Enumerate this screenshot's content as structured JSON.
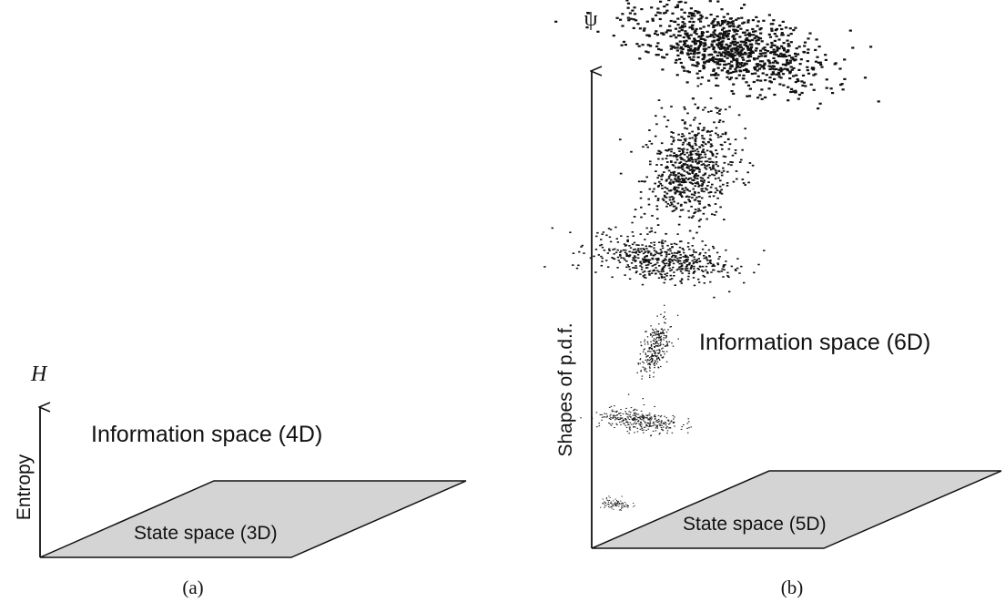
{
  "panel_a": {
    "axis_symbol": "H",
    "axis_label": "Entropy",
    "space_label": "Information space (4D)",
    "plane_label": "State space (3D)",
    "caption": "(a)"
  },
  "panel_b": {
    "axis_symbol": "ψ",
    "axis_label": "Shapes of p.d.f.",
    "space_label": "Information space (6D)",
    "plane_label": "State space (5D)",
    "caption": "(b)"
  }
}
